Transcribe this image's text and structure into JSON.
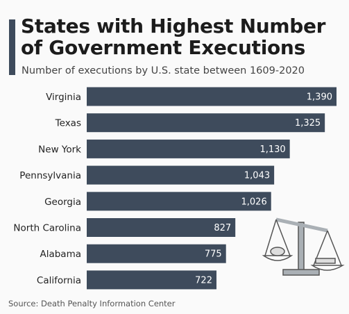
{
  "chart_data": {
    "type": "bar",
    "orientation": "horizontal",
    "title": "States with Highest Number of Government Executions",
    "subtitle": "Number of executions by U.S. state between 1609-2020",
    "source": "Source: Death Penalty Information Center",
    "categories": [
      "Virginia",
      "Texas",
      "New York",
      "Pennsylvania",
      "Georgia",
      "North Carolina",
      "Alabama",
      "California"
    ],
    "values": [
      1390,
      1325,
      1130,
      1043,
      1026,
      827,
      775,
      722
    ],
    "value_labels": [
      "1,390",
      "1,325",
      "1,130",
      "1,043",
      "1,026",
      "827",
      "775",
      "722"
    ],
    "color": "#3e4b5c"
  }
}
